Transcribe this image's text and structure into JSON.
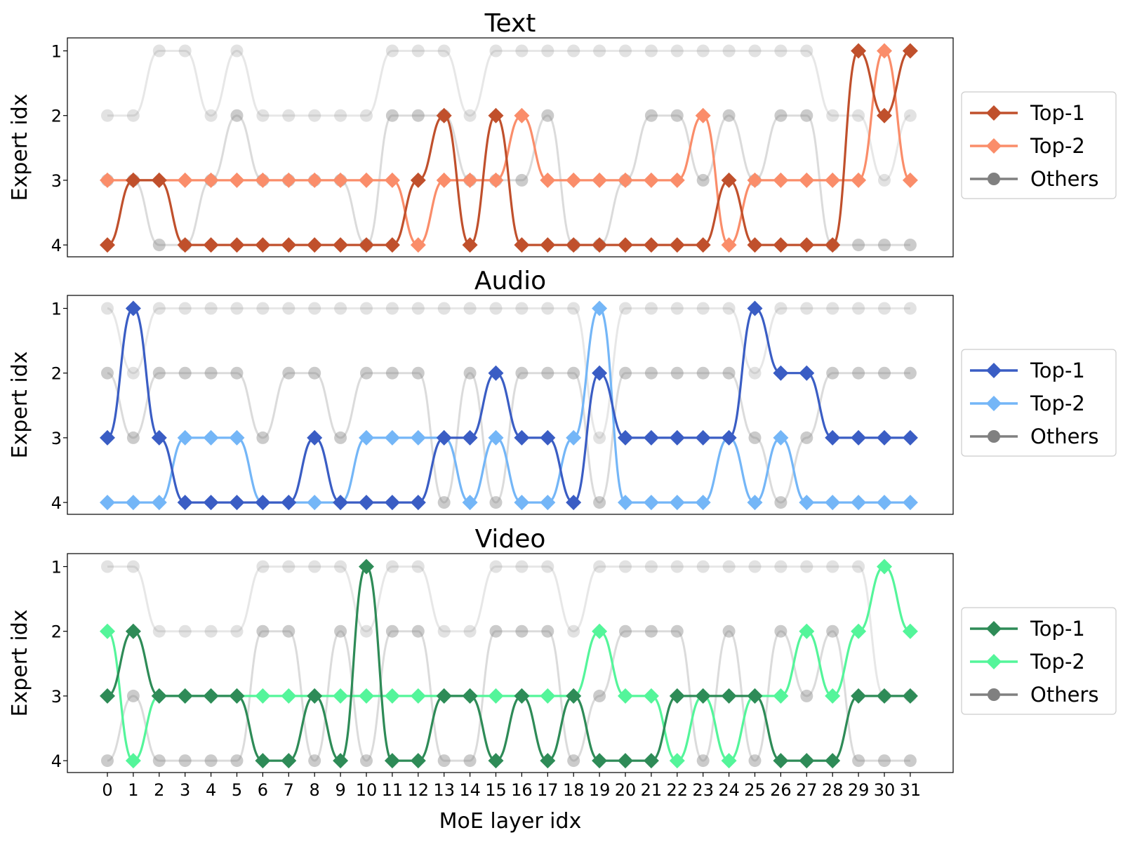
{
  "chart_data": [
    {
      "type": "line",
      "title": "Text",
      "ylabel": "Expert idx",
      "xlabel": "MoE layer idx",
      "x": [
        0,
        1,
        2,
        3,
        4,
        5,
        6,
        7,
        8,
        9,
        10,
        11,
        12,
        13,
        14,
        15,
        16,
        17,
        18,
        19,
        20,
        21,
        22,
        23,
        24,
        25,
        26,
        27,
        28,
        29,
        30,
        31
      ],
      "y_ticks": [
        1,
        2,
        3,
        4
      ],
      "ylim": [
        4.3,
        0.8
      ],
      "y_inverted": true,
      "legend_position": "right, outside",
      "series": [
        {
          "name": "Top-1",
          "color": "#C0502C",
          "marker": "diamond",
          "values": [
            4,
            3,
            3,
            4,
            4,
            4,
            4,
            4,
            4,
            4,
            4,
            4,
            3,
            2,
            4,
            2,
            4,
            4,
            4,
            4,
            4,
            4,
            4,
            4,
            3,
            4,
            4,
            4,
            4,
            1,
            2,
            1
          ]
        },
        {
          "name": "Top-2",
          "color": "#FA8D6A",
          "marker": "diamond",
          "values": [
            3,
            3,
            3,
            3,
            3,
            3,
            3,
            3,
            3,
            3,
            3,
            3,
            4,
            3,
            3,
            3,
            2,
            3,
            3,
            3,
            3,
            3,
            3,
            2,
            4,
            3,
            3,
            3,
            3,
            3,
            1,
            3
          ]
        },
        {
          "name": "Others",
          "color": "#808080",
          "marker": "circle",
          "values": [
            [
              2,
              3
            ],
            [
              2,
              3
            ],
            [
              1,
              4
            ],
            [
              1,
              4
            ],
            [
              2,
              3
            ],
            [
              1,
              2
            ],
            [
              2,
              3
            ],
            [
              2,
              3
            ],
            [
              2,
              3
            ],
            [
              2,
              3
            ],
            [
              2,
              4
            ],
            [
              1,
              2
            ],
            [
              1,
              2
            ],
            [
              1,
              2
            ],
            [
              2,
              3
            ],
            [
              1,
              3
            ],
            [
              1,
              3
            ],
            [
              1,
              2
            ],
            [
              1,
              4
            ],
            [
              1,
              4
            ],
            [
              1,
              3
            ],
            [
              1,
              2
            ],
            [
              1,
              2
            ],
            [
              1,
              3
            ],
            [
              1,
              2
            ],
            [
              1,
              3
            ],
            [
              1,
              2
            ],
            [
              1,
              2
            ],
            [
              2,
              4
            ],
            [
              2,
              4
            ],
            [
              3,
              4
            ],
            [
              2,
              4
            ]
          ]
        }
      ]
    },
    {
      "type": "line",
      "title": "Audio",
      "ylabel": "Expert idx",
      "xlabel": "MoE layer idx",
      "x": [
        0,
        1,
        2,
        3,
        4,
        5,
        6,
        7,
        8,
        9,
        10,
        11,
        12,
        13,
        14,
        15,
        16,
        17,
        18,
        19,
        20,
        21,
        22,
        23,
        24,
        25,
        26,
        27,
        28,
        29,
        30,
        31
      ],
      "y_ticks": [
        1,
        2,
        3,
        4
      ],
      "ylim": [
        4.3,
        0.8
      ],
      "y_inverted": true,
      "legend_position": "right, outside",
      "series": [
        {
          "name": "Top-1",
          "color": "#3A5DC4",
          "marker": "diamond",
          "values": [
            3,
            1,
            3,
            4,
            4,
            4,
            4,
            4,
            3,
            4,
            4,
            4,
            4,
            3,
            3,
            2,
            3,
            3,
            4,
            2,
            3,
            3,
            3,
            3,
            3,
            1,
            2,
            2,
            3,
            3,
            3,
            3
          ]
        },
        {
          "name": "Top-2",
          "color": "#74B6F7",
          "marker": "diamond",
          "values": [
            4,
            4,
            4,
            3,
            3,
            3,
            4,
            4,
            4,
            4,
            3,
            3,
            3,
            3,
            4,
            3,
            4,
            4,
            3,
            1,
            4,
            4,
            4,
            4,
            3,
            4,
            3,
            4,
            4,
            4,
            4,
            4
          ]
        },
        {
          "name": "Others",
          "color": "#808080",
          "marker": "circle",
          "values": [
            [
              1,
              2
            ],
            [
              2,
              3
            ],
            [
              1,
              2
            ],
            [
              1,
              2
            ],
            [
              1,
              2
            ],
            [
              1,
              2
            ],
            [
              1,
              3
            ],
            [
              1,
              2
            ],
            [
              1,
              2
            ],
            [
              1,
              3
            ],
            [
              1,
              2
            ],
            [
              1,
              2
            ],
            [
              1,
              2
            ],
            [
              1,
              4
            ],
            [
              1,
              2
            ],
            [
              1,
              4
            ],
            [
              1,
              2
            ],
            [
              1,
              2
            ],
            [
              1,
              2
            ],
            [
              3,
              4
            ],
            [
              1,
              2
            ],
            [
              1,
              2
            ],
            [
              1,
              2
            ],
            [
              1,
              2
            ],
            [
              1,
              2
            ],
            [
              2,
              3
            ],
            [
              1,
              4
            ],
            [
              1,
              3
            ],
            [
              1,
              2
            ],
            [
              1,
              2
            ],
            [
              1,
              2
            ],
            [
              1,
              2
            ]
          ]
        }
      ]
    },
    {
      "type": "line",
      "title": "Video",
      "ylabel": "Expert idx",
      "xlabel": "MoE layer idx",
      "x": [
        0,
        1,
        2,
        3,
        4,
        5,
        6,
        7,
        8,
        9,
        10,
        11,
        12,
        13,
        14,
        15,
        16,
        17,
        18,
        19,
        20,
        21,
        22,
        23,
        24,
        25,
        26,
        27,
        28,
        29,
        30,
        31
      ],
      "y_ticks": [
        1,
        2,
        3,
        4
      ],
      "ylim": [
        4.3,
        0.8
      ],
      "y_inverted": true,
      "legend_position": "right, outside",
      "series": [
        {
          "name": "Top-1",
          "color": "#2E8B57",
          "marker": "diamond",
          "values": [
            3,
            2,
            3,
            3,
            3,
            3,
            4,
            4,
            3,
            4,
            1,
            4,
            4,
            3,
            3,
            4,
            3,
            4,
            3,
            4,
            4,
            4,
            3,
            3,
            3,
            3,
            4,
            4,
            4,
            3,
            3,
            3
          ]
        },
        {
          "name": "Top-2",
          "color": "#54F59A",
          "marker": "diamond",
          "values": [
            2,
            4,
            3,
            3,
            3,
            3,
            3,
            3,
            3,
            3,
            3,
            3,
            3,
            3,
            3,
            3,
            3,
            3,
            3,
            2,
            3,
            3,
            4,
            3,
            4,
            3,
            3,
            2,
            3,
            2,
            1,
            2
          ]
        },
        {
          "name": "Others",
          "color": "#808080",
          "marker": "circle",
          "values": [
            [
              1,
              4
            ],
            [
              1,
              3
            ],
            [
              2,
              4
            ],
            [
              2,
              4
            ],
            [
              2,
              4
            ],
            [
              2,
              4
            ],
            [
              1,
              2
            ],
            [
              1,
              2
            ],
            [
              1,
              4
            ],
            [
              1,
              2
            ],
            [
              2,
              4
            ],
            [
              1,
              2
            ],
            [
              1,
              2
            ],
            [
              2,
              4
            ],
            [
              2,
              4
            ],
            [
              1,
              2
            ],
            [
              1,
              2
            ],
            [
              1,
              2
            ],
            [
              2,
              4
            ],
            [
              1,
              3
            ],
            [
              1,
              2
            ],
            [
              1,
              2
            ],
            [
              1,
              2
            ],
            [
              1,
              4
            ],
            [
              1,
              2
            ],
            [
              1,
              4
            ],
            [
              1,
              2
            ],
            [
              1,
              3
            ],
            [
              1,
              2
            ],
            [
              1,
              4
            ],
            [
              3,
              4
            ],
            [
              3,
              4
            ]
          ]
        }
      ]
    }
  ]
}
